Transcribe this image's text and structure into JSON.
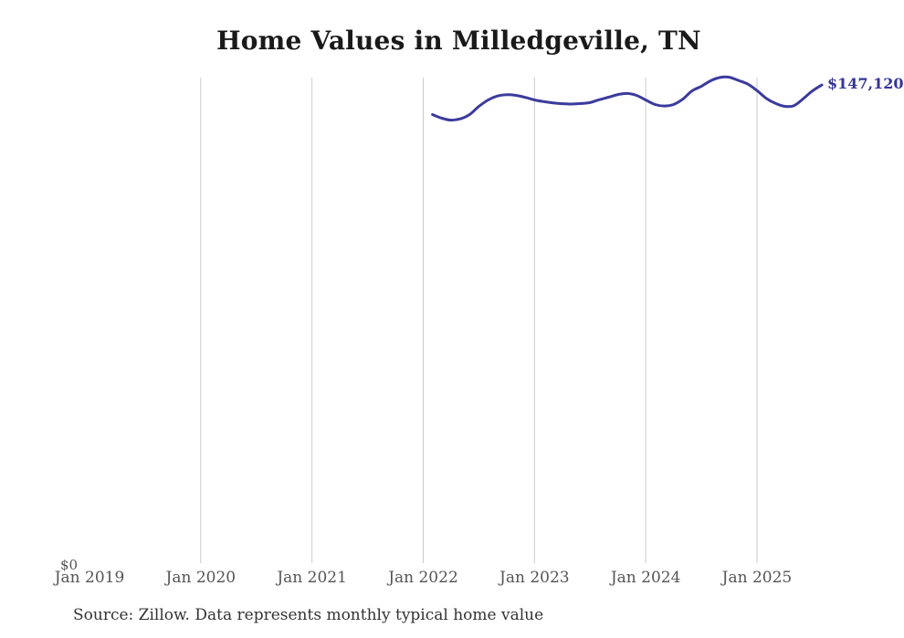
{
  "chart": {
    "title": "Home Values in Milledgeville, TN",
    "source_note": "Source: Zillow. Data represents monthly typical home value",
    "end_value_label": "$147,120",
    "y_axis": {
      "zero_label": "$0"
    },
    "x_axis": {
      "ticks": [
        {
          "label": "Jan 2019",
          "gridline": false
        },
        {
          "label": "Jan 2020",
          "gridline": true
        },
        {
          "label": "Jan 2021",
          "gridline": true
        },
        {
          "label": "Jan 2022",
          "gridline": true
        },
        {
          "label": "Jan 2023",
          "gridline": true
        },
        {
          "label": "Jan 2024",
          "gridline": true
        },
        {
          "label": "Jan 2025",
          "gridline": true
        }
      ]
    },
    "colors": {
      "background": "#ffffff",
      "title": "#1a1a1a",
      "axis_label": "#555555",
      "source": "#333333",
      "gridline": "#cccccc",
      "line": "#3b3b9d",
      "end_label": "#34349a"
    }
  },
  "chart_data": {
    "type": "line",
    "title": "Home Values in Milledgeville, TN",
    "series_name": "Monthly typical home value ($)",
    "legend": "none",
    "grid": "vertical-only",
    "ylim": [
      0,
      150000
    ],
    "x_tick_labels": [
      "Jan 2019",
      "Jan 2020",
      "Jan 2021",
      "Jan 2022",
      "Jan 2023",
      "Jan 2024",
      "Jan 2025"
    ],
    "end_label": "$147,120",
    "x": [
      "2022-02",
      "2022-03",
      "2022-04",
      "2022-05",
      "2022-06",
      "2022-07",
      "2022-08",
      "2022-09",
      "2022-10",
      "2022-11",
      "2022-12",
      "2023-01",
      "2023-02",
      "2023-03",
      "2023-04",
      "2023-05",
      "2023-06",
      "2023-07",
      "2023-08",
      "2023-09",
      "2023-10",
      "2023-11",
      "2023-12",
      "2024-01",
      "2024-02",
      "2024-03",
      "2024-04",
      "2024-05",
      "2024-06",
      "2024-07",
      "2024-08",
      "2024-09",
      "2024-10",
      "2024-11",
      "2024-12",
      "2025-01",
      "2025-02",
      "2025-03",
      "2025-04",
      "2025-05",
      "2025-06",
      "2025-07",
      "2025-08"
    ],
    "values": [
      138000,
      136900,
      136300,
      136700,
      138000,
      140500,
      142500,
      143700,
      144100,
      143900,
      143300,
      142500,
      142000,
      141600,
      141350,
      141250,
      141400,
      141700,
      142600,
      143350,
      144150,
      144500,
      143900,
      142500,
      141100,
      140650,
      141100,
      142750,
      145300,
      146700,
      148400,
      149400,
      149500,
      148500,
      147400,
      145400,
      143000,
      141450,
      140550,
      140750,
      142900,
      145300,
      147120
    ]
  }
}
